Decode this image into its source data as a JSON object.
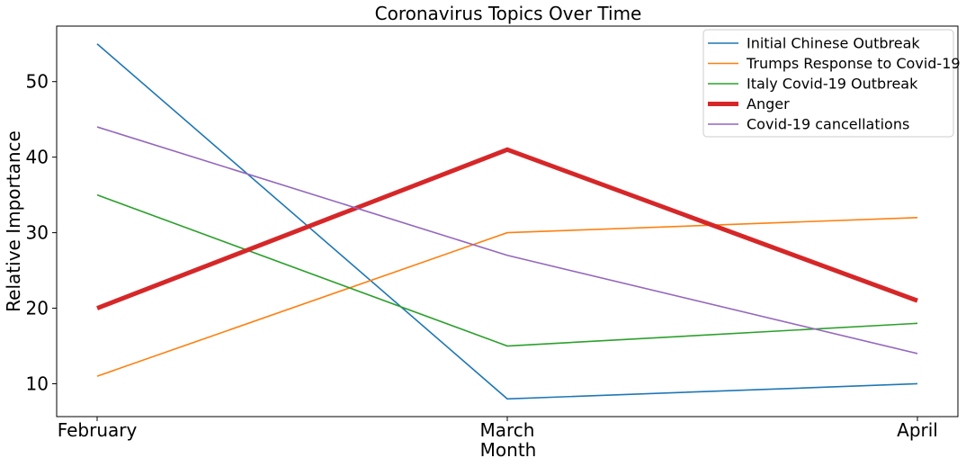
{
  "chart_data": {
    "type": "line",
    "title": "Coronavirus Topics Over Time",
    "xlabel": "Month",
    "ylabel": "Relative Importance",
    "categories": [
      "February",
      "March",
      "April"
    ],
    "ylim": [
      5.65,
      57.35
    ],
    "yticks": [
      10,
      20,
      30,
      40,
      50
    ],
    "grid": false,
    "legend_position": "top-right",
    "series": [
      {
        "name": "Initial Chinese Outbreak",
        "values": [
          55,
          8,
          10
        ],
        "color": "#1f77b4",
        "emphasis": false
      },
      {
        "name": "Trumps Response to Covid-19",
        "values": [
          11,
          30,
          32
        ],
        "color": "#ff7f0e",
        "emphasis": false
      },
      {
        "name": "Italy Covid-19 Outbreak",
        "values": [
          35,
          15,
          18
        ],
        "color": "#2ca02c",
        "emphasis": false
      },
      {
        "name": "Anger",
        "values": [
          20,
          41,
          21
        ],
        "color": "#d62728",
        "emphasis": true
      },
      {
        "name": "Covid-19 cancellations",
        "values": [
          44,
          27,
          14
        ],
        "color": "#9467bd",
        "emphasis": false
      }
    ]
  }
}
